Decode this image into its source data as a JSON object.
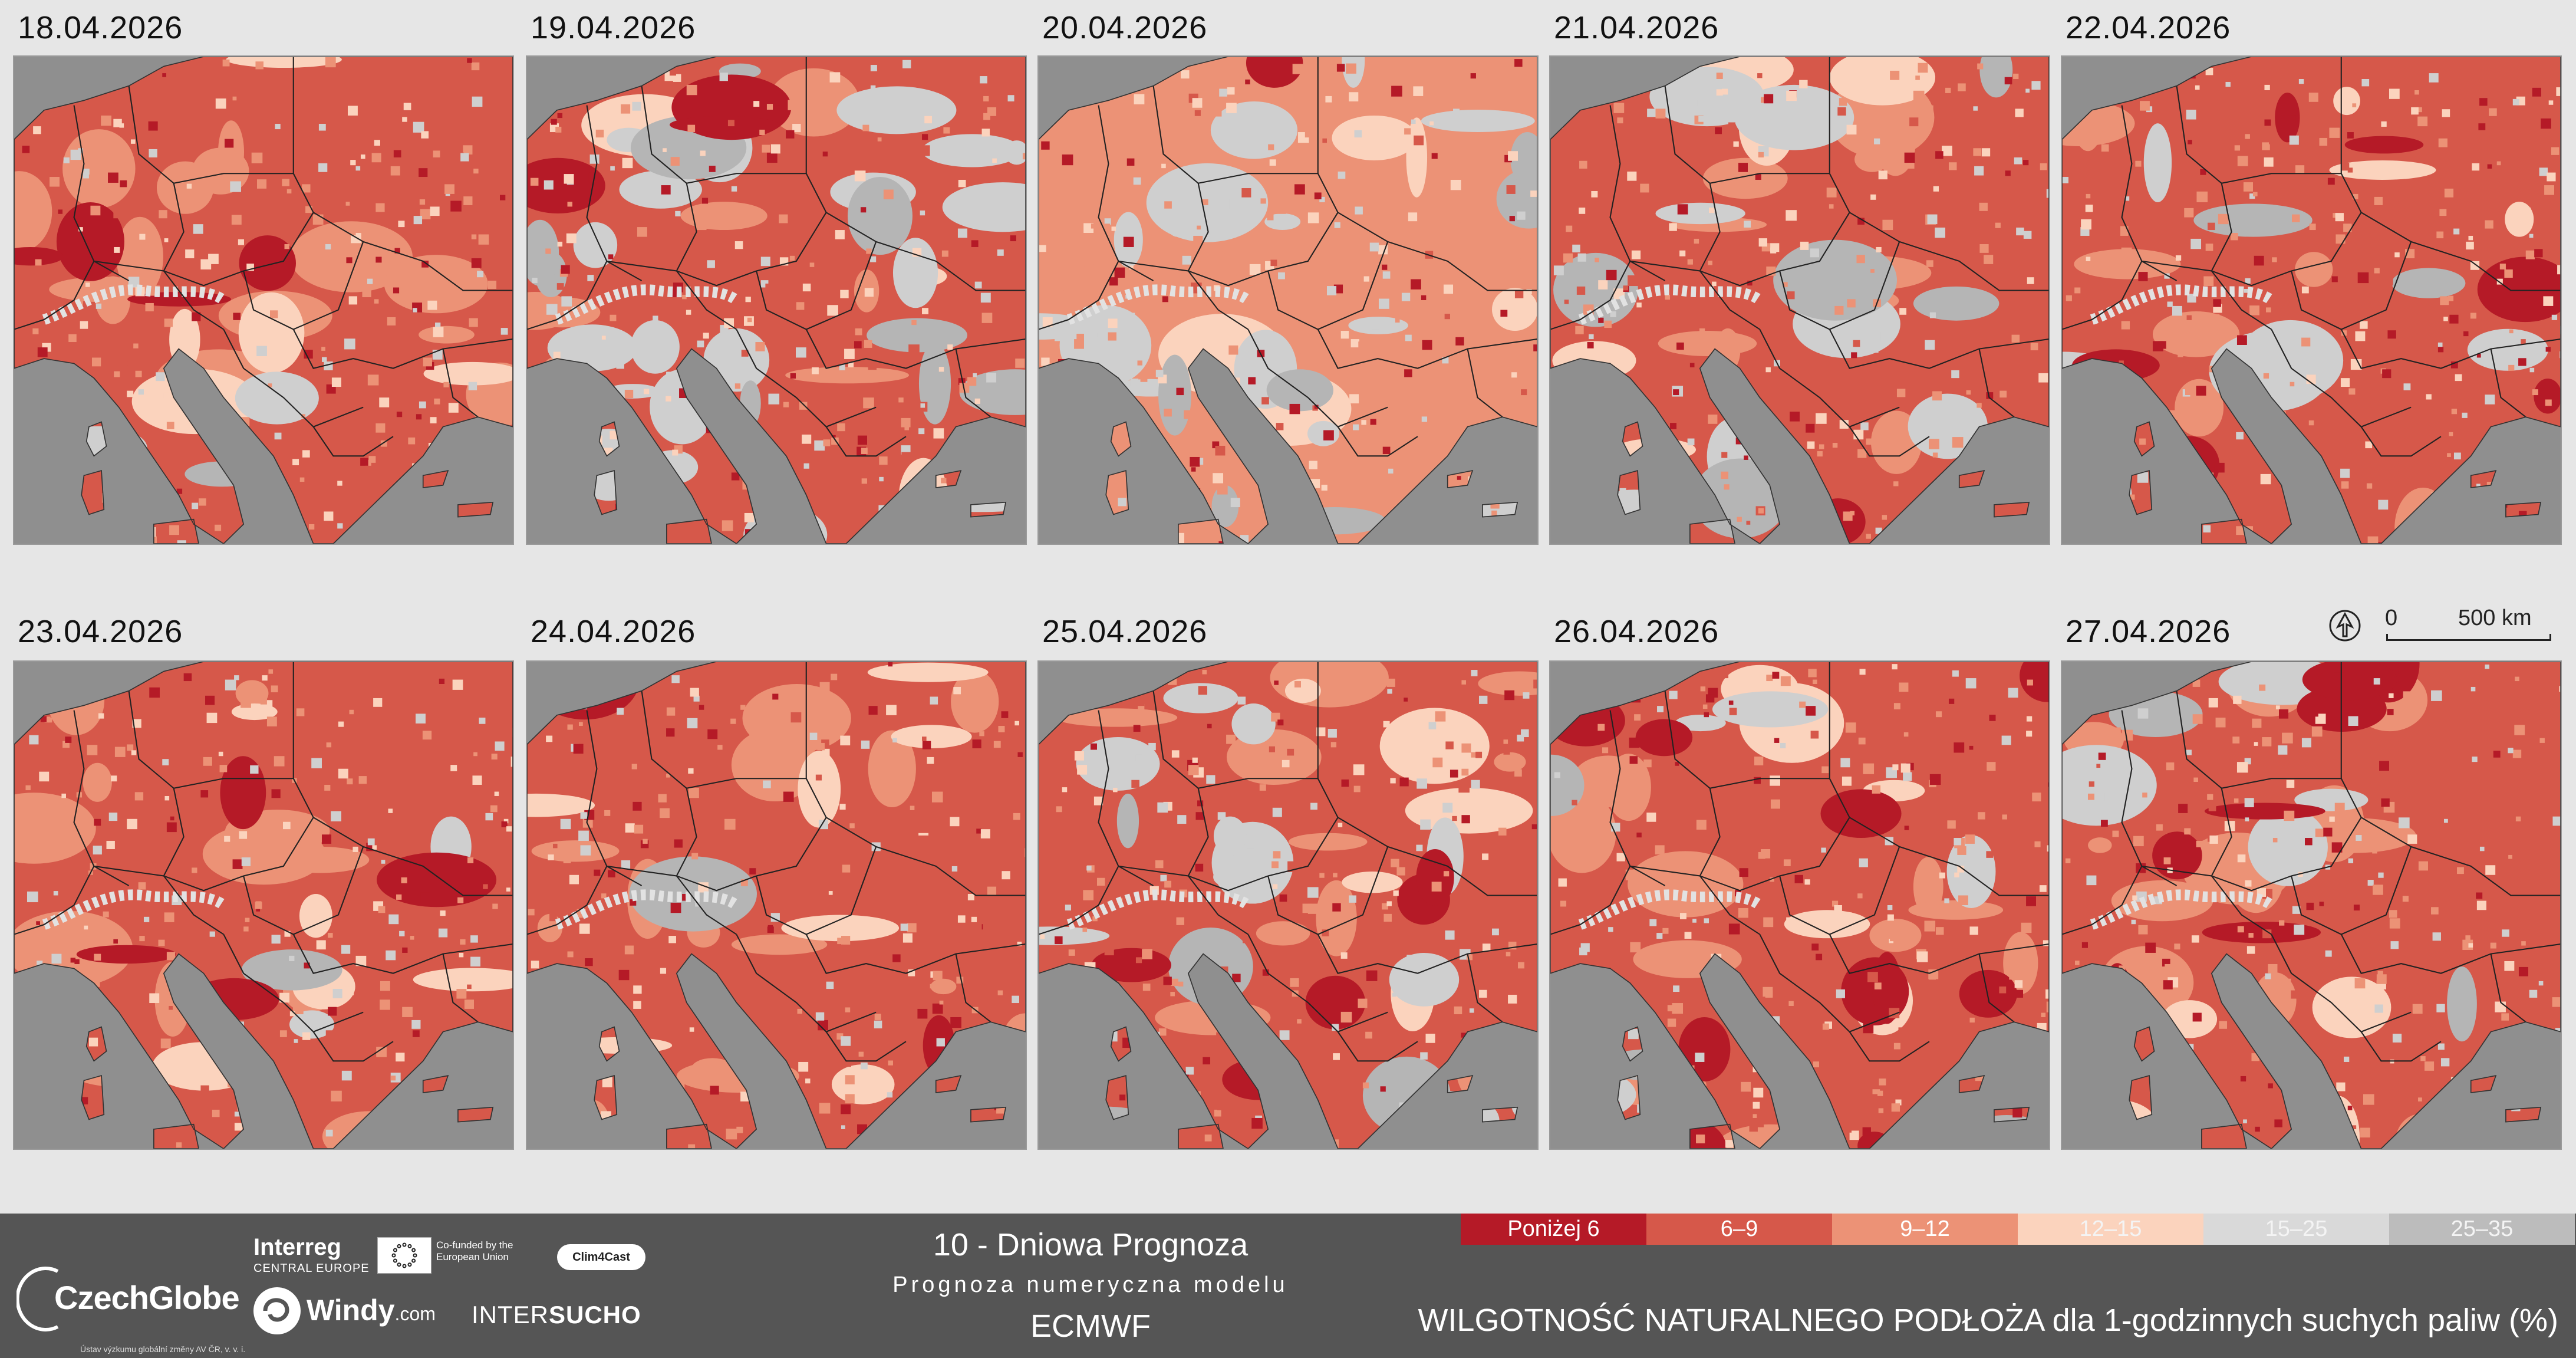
{
  "dates": [
    "18.04.2026",
    "19.04.2026",
    "20.04.2026",
    "21.04.2026",
    "22.04.2026",
    "23.04.2026",
    "24.04.2026",
    "25.04.2026",
    "26.04.2026",
    "27.04.2026"
  ],
  "scale": {
    "zero": "0",
    "distance": "500 km"
  },
  "colors": {
    "sea": "#8f8f8f",
    "outside": "#8f8f8f",
    "borders": "#222222",
    "classes": [
      "#b51a27",
      "#d6584a",
      "#ec9276",
      "#fbd3bd",
      "#cfcfcf",
      "#b5b5b5"
    ]
  },
  "legend": [
    {
      "label": "Poniżej 6",
      "color": "#b51a27"
    },
    {
      "label": "6–9",
      "color": "#d6584a"
    },
    {
      "label": "9–12",
      "color": "#ec9276"
    },
    {
      "label": "12–15",
      "color": "#fbd3bd"
    },
    {
      "label": "15–25",
      "color": "#d9d9d9"
    },
    {
      "label": "25–35",
      "color": "#bcbcbc"
    }
  ],
  "footer": {
    "logos": {
      "czechglobe": "CzechGlobe",
      "czechglobe_sub": "Ústav výzkumu globální změny AV ČR, v. v. i.",
      "interreg": "Interreg",
      "interreg_sub": "CENTRAL EUROPE",
      "eu": "Co-funded by the European Union",
      "clim4cast": "Clim4Cast",
      "windy": "Windy",
      "windy_com": ".com",
      "intersucho_a": "INTER",
      "intersucho_b": "SUCHO"
    },
    "title": "10 - Dniowa Prognoza",
    "subtitle": "Prognoza numeryczna modelu",
    "model": "ECMWF",
    "variable": "WILGOTNOŚĆ NATURALNEGO PODŁOŻA dla 1-godzinnych suchych paliw (%)"
  },
  "map_patterns": [
    {
      "base": 1,
      "red": 0.1,
      "light": 0.35,
      "gray": 0.05
    },
    {
      "base": 1,
      "red": 0.08,
      "light": 0.2,
      "gray": 0.45
    },
    {
      "base": 2,
      "red": 0.03,
      "light": 0.4,
      "gray": 0.35
    },
    {
      "base": 1,
      "red": 0.05,
      "light": 0.3,
      "gray": 0.25
    },
    {
      "base": 1,
      "red": 0.15,
      "light": 0.2,
      "gray": 0.15
    },
    {
      "base": 1,
      "red": 0.1,
      "light": 0.35,
      "gray": 0.05
    },
    {
      "base": 1,
      "red": 0.05,
      "light": 0.45,
      "gray": 0.03
    },
    {
      "base": 1,
      "red": 0.15,
      "light": 0.3,
      "gray": 0.25
    },
    {
      "base": 1,
      "red": 0.25,
      "light": 0.3,
      "gray": 0.15
    },
    {
      "base": 1,
      "red": 0.2,
      "light": 0.35,
      "gray": 0.08
    }
  ]
}
